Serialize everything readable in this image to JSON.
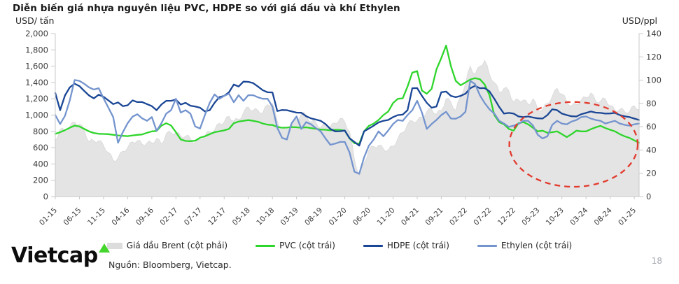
{
  "header": {
    "title": "Diễn biến giá nhựa nguyên liệu PVC, HDPE so với giá dầu và khí Ethylen",
    "unit_left": "USD/ tấn",
    "unit_right": "USD/ppl"
  },
  "chart_data": {
    "type": "area+line",
    "x_start": "01-15",
    "x_end": "02-25",
    "n_points": 122,
    "x_tick_labels": [
      "01-15",
      "06-15",
      "11-15",
      "04-16",
      "09-16",
      "02-17",
      "07-17",
      "12-17",
      "05-18",
      "10-18",
      "03-19",
      "08-19",
      "01-20",
      "06-20",
      "11-20",
      "04-21",
      "09-21",
      "02-22",
      "07-22",
      "12-22",
      "05-23",
      "10-23",
      "03-24",
      "08-24",
      "01-25"
    ],
    "x_tick_every_n_months": 5,
    "left_axis": {
      "title": "USD/ tấn",
      "min": 0,
      "max": 2000,
      "step": 200,
      "tick_labels": [
        "2,000",
        "1,800",
        "1,600",
        "1,400",
        "1,200",
        "1,000",
        "800",
        "600",
        "400",
        "200",
        "0"
      ]
    },
    "right_axis": {
      "title": "USD/ppl",
      "min": 0,
      "max": 140,
      "step": 20,
      "tick_labels": [
        "140",
        "120",
        "100",
        "80",
        "60",
        "40",
        "20",
        "0"
      ]
    },
    "grid": false,
    "legend_position": "bottom-center",
    "series": [
      {
        "name": "Giá dầu Brent (cột phải)",
        "axis": "right",
        "style": "area",
        "color": "#e4e4e4",
        "edge_color": "#d6d6d6",
        "values": [
          48,
          58,
          56,
          60,
          64,
          62,
          57,
          47,
          48,
          48,
          44,
          38,
          31,
          33,
          39,
          42,
          47,
          48,
          45,
          46,
          46,
          50,
          45,
          54,
          55,
          55,
          52,
          52,
          50,
          46,
          49,
          52,
          56,
          57,
          63,
          64,
          69,
          65,
          66,
          72,
          77,
          74,
          74,
          72,
          79,
          80,
          65,
          57,
          59,
          64,
          66,
          71,
          70,
          64,
          64,
          59,
          62,
          60,
          63,
          67,
          64,
          56,
          32,
          18,
          29,
          40,
          43,
          44,
          41,
          40,
          43,
          50,
          55,
          62,
          65,
          65,
          68,
          73,
          75,
          71,
          74,
          84,
          81,
          74,
          86,
          97,
          112,
          105,
          112,
          117,
          105,
          98,
          90,
          93,
          91,
          81,
          83,
          83,
          79,
          84,
          75,
          75,
          80,
          86,
          93,
          88,
          82,
          78,
          79,
          83,
          85,
          89,
          82,
          82,
          84,
          78,
          74,
          75,
          73,
          73,
          78,
          75
        ]
      },
      {
        "name": "PVC (cột trái)",
        "axis": "left",
        "style": "line",
        "color": "#2ed52b",
        "values": [
          770,
          790,
          815,
          845,
          870,
          860,
          830,
          800,
          780,
          770,
          768,
          766,
          758,
          750,
          745,
          742,
          750,
          757,
          762,
          783,
          800,
          805,
          870,
          900,
          872,
          790,
          700,
          682,
          680,
          686,
          722,
          740,
          766,
          790,
          800,
          812,
          830,
          900,
          920,
          930,
          938,
          930,
          918,
          896,
          882,
          878,
          855,
          845,
          846,
          853,
          850,
          845,
          850,
          840,
          832,
          822,
          820,
          812,
          820,
          818,
          809,
          713,
          655,
          648,
          800,
          868,
          896,
          940,
          1000,
          1044,
          1148,
          1200,
          1205,
          1350,
          1520,
          1540,
          1300,
          1262,
          1322,
          1560,
          1700,
          1853,
          1600,
          1420,
          1366,
          1400,
          1436,
          1453,
          1440,
          1375,
          1244,
          1000,
          913,
          887,
          830,
          809,
          900,
          913,
          887,
          844,
          800,
          809,
          783,
          790,
          800,
          766,
          730,
          766,
          809,
          800,
          800,
          827,
          850,
          868,
          840,
          820,
          800,
          766,
          740,
          720,
          690,
          660
        ]
      },
      {
        "name": "HDPE (cột trái)",
        "axis": "left",
        "style": "line",
        "color": "#1a4695",
        "values": [
          1270,
          1060,
          1240,
          1340,
          1385,
          1355,
          1295,
          1240,
          1205,
          1250,
          1225,
          1180,
          1135,
          1155,
          1110,
          1120,
          1180,
          1160,
          1160,
          1135,
          1110,
          1060,
          1130,
          1175,
          1175,
          1190,
          1130,
          1150,
          1115,
          1105,
          1090,
          1045,
          1060,
          1150,
          1220,
          1235,
          1280,
          1375,
          1350,
          1410,
          1408,
          1392,
          1350,
          1305,
          1280,
          1278,
          1050,
          1062,
          1060,
          1045,
          1030,
          1028,
          985,
          960,
          945,
          930,
          890,
          830,
          800,
          802,
          810,
          715,
          670,
          625,
          800,
          835,
          870,
          910,
          930,
          940,
          975,
          1000,
          1005,
          1060,
          1330,
          1331,
          1235,
          1150,
          1090,
          1105,
          1280,
          1288,
          1235,
          1220,
          1235,
          1262,
          1330,
          1360,
          1330,
          1331,
          1290,
          1200,
          1100,
          1018,
          1027,
          1018,
          983,
          975,
          983,
          970,
          960,
          957,
          1000,
          1070,
          1061,
          1018,
          1000,
          985,
          983,
          1010,
          1027,
          1044,
          1030,
          1027,
          1018,
          1020,
          1027,
          1000,
          985,
          975,
          957,
          940
        ]
      },
      {
        "name": "Ethylen (cột trái)",
        "axis": "left",
        "style": "line",
        "color": "#7494ce",
        "values": [
          1000,
          890,
          990,
          1180,
          1430,
          1420,
          1384,
          1340,
          1313,
          1330,
          1206,
          1091,
          976,
          660,
          790,
          900,
          980,
          1010,
          960,
          930,
          976,
          807,
          900,
          1018,
          1060,
          1200,
          1030,
          1060,
          1018,
          860,
          835,
          1000,
          1150,
          1253,
          1200,
          1235,
          1262,
          1157,
          1244,
          1175,
          1244,
          1244,
          1218,
          1200,
          1200,
          1105,
          844,
          720,
          700,
          900,
          983,
          830,
          913,
          887,
          840,
          800,
          713,
          635,
          650,
          670,
          670,
          540,
          305,
          280,
          480,
          625,
          700,
          800,
          740,
          810,
          890,
          940,
          930,
          1000,
          1060,
          1175,
          1030,
          830,
          890,
          940,
          1000,
          1040,
          957,
          955,
          983,
          1040,
          1420,
          1380,
          1244,
          1148,
          1070,
          1018,
          930,
          896,
          855,
          870,
          890,
          930,
          930,
          870,
          757,
          713,
          740,
          880,
          930,
          896,
          887,
          920,
          940,
          975,
          983,
          957,
          940,
          930,
          896,
          913,
          930,
          896,
          880,
          870,
          887,
          896
        ]
      }
    ],
    "annotation": {
      "shape": "dashed-ellipse",
      "color": "#e23b2e",
      "center_month_index": 107.4,
      "center_value_left": 640,
      "radius_months": 13.3,
      "radius_value_left": 520
    }
  },
  "footer": {
    "logo_text": "Vietcap",
    "logo_accent_color": "#44d62c",
    "source": "Nguồn: Bloomberg, Vietcap.",
    "page_number": "18"
  }
}
